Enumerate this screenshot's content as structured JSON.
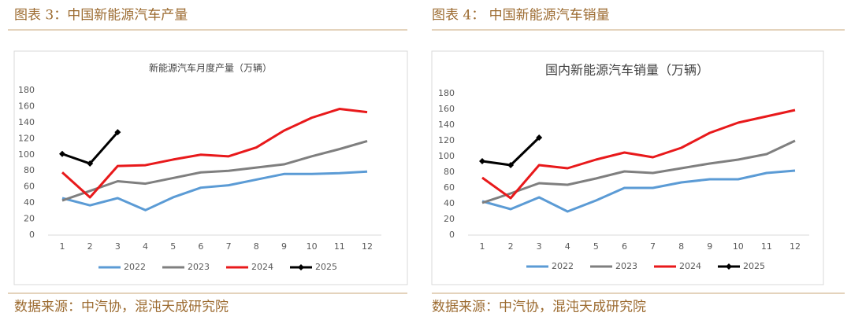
{
  "figures": [
    {
      "caption": "图表 3：中国新能源汽车产量",
      "source": "数据来源：中汽协，混沌天成研究院"
    },
    {
      "caption": "图表 4：   中国新能源汽车销量",
      "source": "数据来源：中汽协，混沌天成研究院"
    }
  ],
  "chart_data": [
    {
      "type": "line",
      "title": "新能源汽车月度产量（万辆）",
      "categories": [
        "1",
        "2",
        "3",
        "4",
        "5",
        "6",
        "7",
        "8",
        "9",
        "10",
        "11",
        "12"
      ],
      "ylim": [
        0,
        180
      ],
      "yticks": [
        0,
        20,
        40,
        60,
        80,
        100,
        120,
        140,
        160,
        180
      ],
      "legend": "bottom",
      "series": [
        {
          "name": "2022",
          "color": "#5b9bd5",
          "values": [
            46,
            37,
            46,
            31,
            47,
            59,
            62,
            69,
            76,
            76,
            77,
            79
          ]
        },
        {
          "name": "2023",
          "color": "#7f7f7f",
          "values": [
            43,
            55,
            67,
            64,
            71,
            78,
            80,
            84,
            88,
            98,
            107,
            117
          ]
        },
        {
          "name": "2024",
          "color": "#e8191b",
          "values": [
            78,
            47,
            86,
            87,
            94,
            100,
            98,
            109,
            130,
            146,
            157,
            153
          ]
        },
        {
          "name": "2025",
          "color": "#000000",
          "marker": true,
          "values": [
            101,
            89,
            128,
            null,
            null,
            null,
            null,
            null,
            null,
            null,
            null,
            null
          ]
        }
      ]
    },
    {
      "type": "line",
      "title": "国内新能源汽车销量（万辆）",
      "categories": [
        "1",
        "2",
        "3",
        "4",
        "5",
        "6",
        "7",
        "8",
        "9",
        "10",
        "11",
        "12"
      ],
      "ylim": [
        0,
        180
      ],
      "yticks": [
        0,
        20,
        40,
        60,
        80,
        100,
        120,
        140,
        160,
        180
      ],
      "legend": "bottom",
      "series": [
        {
          "name": "2022",
          "color": "#5b9bd5",
          "values": [
            43,
            33,
            48,
            30,
            44,
            60,
            60,
            67,
            71,
            71,
            79,
            82
          ]
        },
        {
          "name": "2023",
          "color": "#7f7f7f",
          "values": [
            41,
            53,
            66,
            64,
            72,
            81,
            79,
            85,
            91,
            96,
            103,
            120
          ]
        },
        {
          "name": "2024",
          "color": "#e8191b",
          "values": [
            73,
            47,
            89,
            85,
            96,
            105,
            99,
            111,
            130,
            143,
            151,
            159
          ]
        },
        {
          "name": "2025",
          "color": "#000000",
          "marker": true,
          "values": [
            94,
            89,
            124,
            null,
            null,
            null,
            null,
            null,
            null,
            null,
            null,
            null
          ]
        }
      ]
    }
  ]
}
